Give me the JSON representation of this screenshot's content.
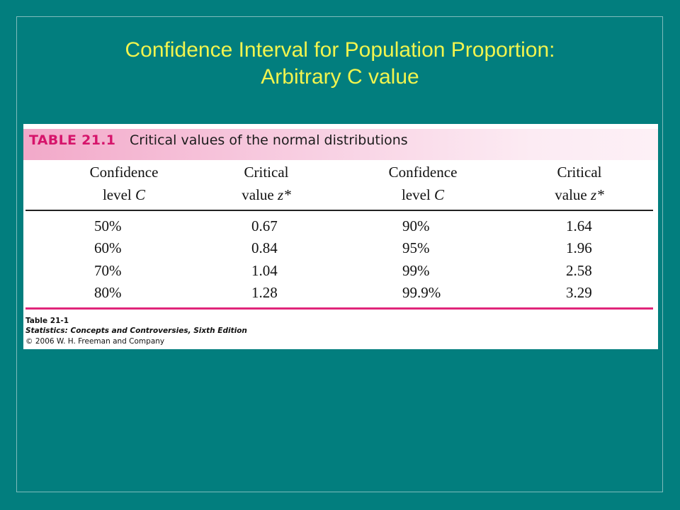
{
  "slide": {
    "title_line1": "Confidence Interval for Population Proportion:",
    "title_line2": "Arbitrary C value"
  },
  "table": {
    "number": "TABLE 21.1",
    "caption": "Critical values of the normal distributions",
    "columns": [
      {
        "line1": "Confidence",
        "line2_text": "level ",
        "line2_sym": "C"
      },
      {
        "line1": "Critical",
        "line2_text": "value ",
        "line2_sym": "z*"
      },
      {
        "line1": "Confidence",
        "line2_text": "level ",
        "line2_sym": "C"
      },
      {
        "line1": "Critical",
        "line2_text": "value ",
        "line2_sym": "z*"
      }
    ],
    "rows": [
      [
        "50%",
        "0.67",
        "90%",
        "1.64"
      ],
      [
        "60%",
        "0.84",
        "95%",
        "1.96"
      ],
      [
        "70%",
        "1.04",
        "99%",
        "2.58"
      ],
      [
        "80%",
        "1.28",
        "99.9%",
        "3.29"
      ]
    ],
    "credit": {
      "line1": "Table 21-1",
      "line2": "Statistics: Concepts and Controversies, Sixth Edition",
      "line3": "© 2006 W. H. Freeman and Company"
    }
  },
  "colors": {
    "background": "#027e7e",
    "title": "#f1f44e",
    "accent": "#d6146b"
  }
}
